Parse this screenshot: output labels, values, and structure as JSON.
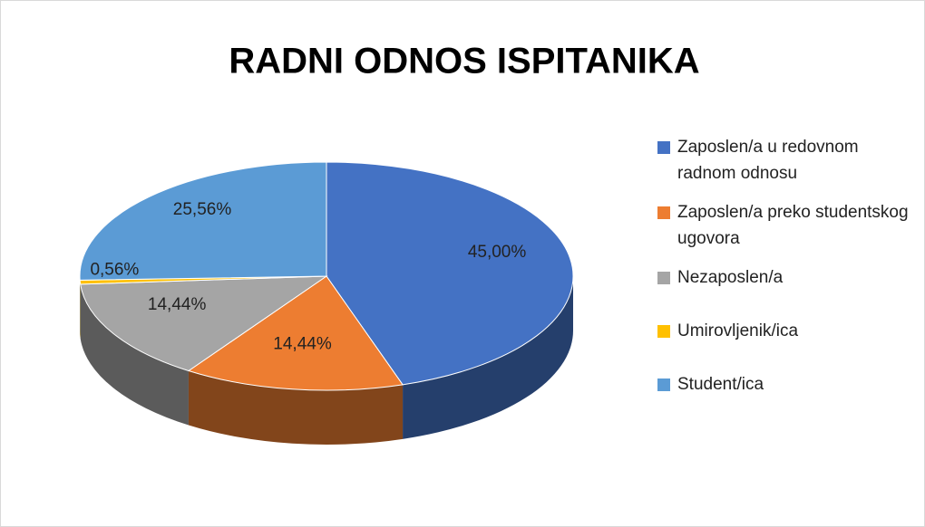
{
  "chart_data": {
    "type": "pie",
    "title": "RADNI ODNOS ISPITANIKA",
    "categories": [
      "Zaposlen/a u redovnom radnom odnosu",
      "Zaposlen/a preko studentskog ugovora",
      "Nezaposlen/a",
      "Umirovljenik/ica",
      "Student/ica"
    ],
    "values": [
      45,
      14.44,
      14.44,
      0.56,
      25.56
    ],
    "value_labels": [
      "45,00%",
      "14,44%",
      "14,44%",
      "0,56%",
      "25,56%"
    ],
    "colors": [
      "#4472c4",
      "#ed7d31",
      "#a5a5a5",
      "#ffc000",
      "#5b9bd5"
    ],
    "legend": "right"
  }
}
